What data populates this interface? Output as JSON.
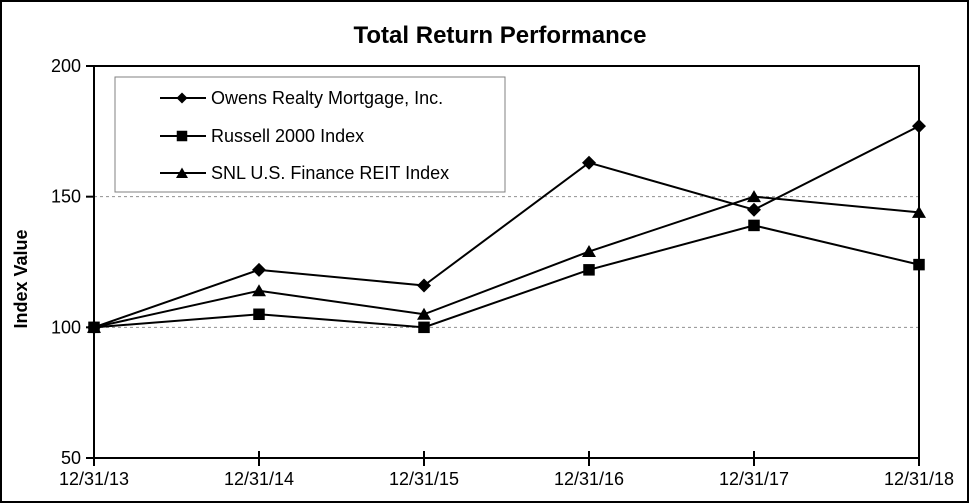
{
  "chart_data": {
    "type": "line",
    "title": "Total Return Performance",
    "xlabel": "",
    "ylabel": "Index Value",
    "categories": [
      "12/31/13",
      "12/31/14",
      "12/31/15",
      "12/31/16",
      "12/31/17",
      "12/31/18"
    ],
    "series": [
      {
        "name": "Owens Realty Mortgage, Inc.",
        "marker": "diamond",
        "values": [
          100,
          122,
          116,
          163,
          145,
          177
        ]
      },
      {
        "name": "Russell 2000 Index",
        "marker": "square",
        "values": [
          100,
          105,
          100,
          122,
          139,
          124
        ]
      },
      {
        "name": "SNL U.S. Finance REIT Index",
        "marker": "triangle",
        "values": [
          100,
          114,
          105,
          129,
          150,
          144
        ]
      }
    ],
    "ylim": [
      50,
      200
    ],
    "yticks": [
      200,
      150,
      100,
      50
    ],
    "grid": "horizontal dashed gridlines at interior y-ticks (100 and 150)",
    "legend_position": "top-left inside plot area",
    "colors": {
      "line": "#000000",
      "marker": "#000000",
      "text": "#000000",
      "background": "#ffffff",
      "gridline": "#909090",
      "legend_border": "#808080",
      "outer_border": "#000000"
    }
  }
}
